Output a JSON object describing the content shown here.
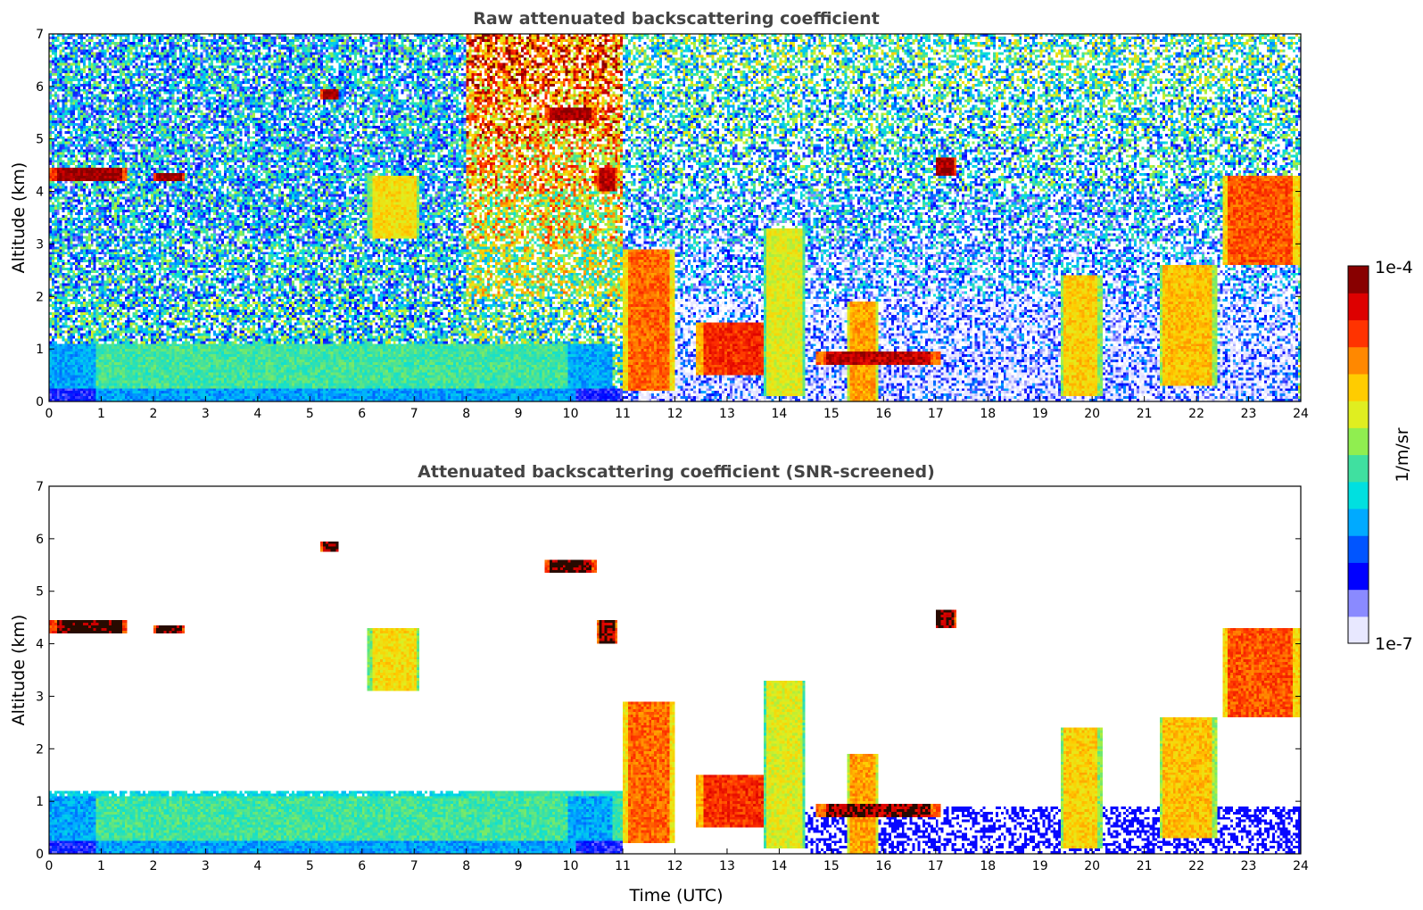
{
  "chart_data": [
    {
      "type": "heatmap",
      "title": "Raw attenuated backscattering coefficient",
      "xlabel": "",
      "ylabel": "Altitude (km)",
      "xlim": [
        0,
        24
      ],
      "ylim": [
        0,
        7
      ],
      "xticks": [
        "0",
        "1",
        "2",
        "3",
        "4",
        "5",
        "6",
        "7",
        "8",
        "9",
        "10",
        "11",
        "12",
        "13",
        "14",
        "15",
        "16",
        "17",
        "18",
        "19",
        "20",
        "21",
        "22",
        "23",
        "24"
      ],
      "yticks": [
        "0",
        "1",
        "2",
        "3",
        "4",
        "5",
        "6",
        "7"
      ],
      "background_noise": [
        {
          "t0": 0,
          "t1": 8,
          "levels": [
            0.45,
            0.38,
            0.35,
            0.33,
            0.32,
            0.32,
            0.33
          ]
        },
        {
          "t0": 8,
          "t1": 11,
          "levels": [
            0.45,
            0.45,
            0.55,
            0.62,
            0.7,
            0.76,
            0.82
          ]
        },
        {
          "t0": 11,
          "t1": 24,
          "levels": [
            0.06,
            0.1,
            0.22,
            0.28,
            0.36,
            0.4,
            0.44
          ]
        }
      ],
      "features": [
        {
          "name": "boundary layer",
          "t0": 0,
          "t1": 10.8,
          "z0": 0,
          "z1": 1.1,
          "level": 0.46
        },
        {
          "name": "surface layer",
          "t0": 0,
          "t1": 11,
          "z0": 0,
          "z1": 0.25,
          "level": 0.3
        },
        {
          "name": "cloud 4.3km",
          "t0": 0,
          "t1": 1.5,
          "z0": 4.2,
          "z1": 4.45,
          "level": 0.99
        },
        {
          "name": "cloud 4.3km b",
          "t0": 2.0,
          "t1": 2.6,
          "z0": 4.2,
          "z1": 4.38,
          "level": 0.98
        },
        {
          "name": "cloud 5.8km",
          "t0": 5.2,
          "t1": 5.55,
          "z0": 5.75,
          "z1": 5.95,
          "level": 0.97
        },
        {
          "name": "aerosol plume",
          "t0": 6.1,
          "t1": 7.1,
          "z0": 3.1,
          "z1": 4.3,
          "level": 0.66
        },
        {
          "name": "cloud 5.5km",
          "t0": 9.5,
          "t1": 10.5,
          "z0": 5.35,
          "z1": 5.6,
          "level": 0.98
        },
        {
          "name": "cloud 4.2km",
          "t0": 10.5,
          "t1": 10.9,
          "z0": 4.0,
          "z1": 4.45,
          "level": 0.95
        },
        {
          "name": "convection 11-12",
          "t0": 11.0,
          "t1": 12.0,
          "z0": 0.2,
          "z1": 2.9,
          "level": 0.8
        },
        {
          "name": "cloud 12.5-14",
          "t0": 12.4,
          "t1": 14.0,
          "z0": 0.5,
          "z1": 1.5,
          "level": 0.86
        },
        {
          "name": "convection 14",
          "t0": 13.7,
          "t1": 14.5,
          "z0": 0.1,
          "z1": 3.3,
          "level": 0.62
        },
        {
          "name": "cloud 15.5",
          "t0": 15.3,
          "t1": 15.9,
          "z0": 0,
          "z1": 1.9,
          "level": 0.74
        },
        {
          "name": "cloud 0.8km",
          "t0": 14.7,
          "t1": 17.1,
          "z0": 0.7,
          "z1": 0.95,
          "level": 0.95
        },
        {
          "name": "cloud 4.5km",
          "t0": 17.0,
          "t1": 17.4,
          "z0": 4.3,
          "z1": 4.65,
          "level": 0.97
        },
        {
          "name": "convection 19-20",
          "t0": 19.4,
          "t1": 20.2,
          "z0": 0.1,
          "z1": 2.4,
          "level": 0.68
        },
        {
          "name": "convection 21-22",
          "t0": 21.3,
          "t1": 22.4,
          "z0": 0.3,
          "z1": 2.6,
          "level": 0.7
        },
        {
          "name": "cloud 3.5km",
          "t0": 22.5,
          "t1": 24,
          "z0": 2.6,
          "z1": 4.3,
          "level": 0.82
        }
      ]
    },
    {
      "type": "heatmap",
      "title": "Attenuated backscattering coefficient (SNR-screened)",
      "xlabel": "Time (UTC)",
      "ylabel": "Altitude (km)",
      "xlim": [
        0,
        24
      ],
      "ylim": [
        0,
        7
      ],
      "xticks": [
        "0",
        "1",
        "2",
        "3",
        "4",
        "5",
        "6",
        "7",
        "8",
        "9",
        "10",
        "11",
        "12",
        "13",
        "14",
        "15",
        "16",
        "17",
        "18",
        "19",
        "20",
        "21",
        "22",
        "23",
        "24"
      ],
      "yticks": [
        "0",
        "1",
        "2",
        "3",
        "4",
        "5",
        "6",
        "7"
      ],
      "screened": true
    }
  ],
  "colorbar": {
    "label": "1/m/sr",
    "max_label": "1e-4",
    "min_label": "1e-7",
    "colors": [
      "#e8e8ff",
      "#8a8aff",
      "#0000ff",
      "#0055ff",
      "#00aaff",
      "#00e0e0",
      "#40e0a0",
      "#90ee50",
      "#e0ee20",
      "#ffcc00",
      "#ff8800",
      "#ff3300",
      "#dd0000",
      "#880000"
    ]
  }
}
